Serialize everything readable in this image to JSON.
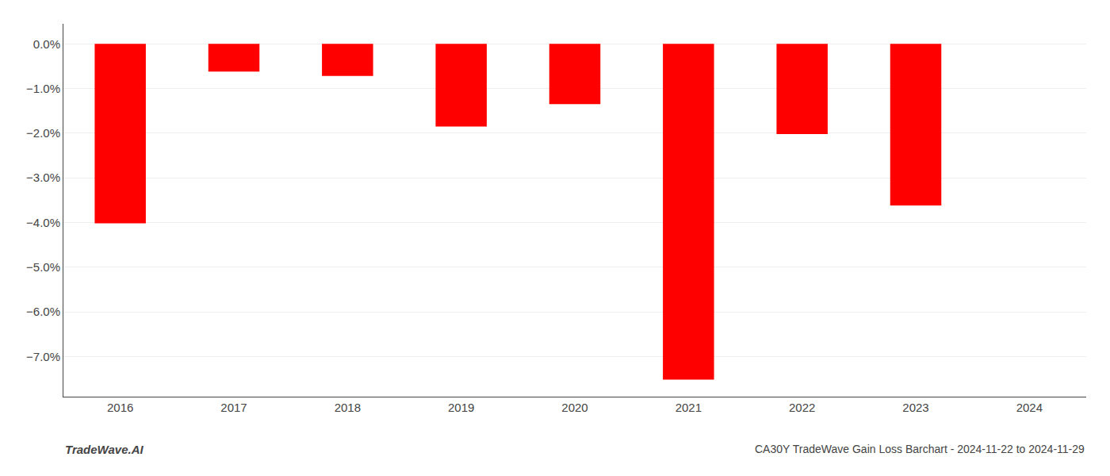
{
  "chart_data": {
    "type": "bar",
    "title": "CA30Y TradeWave Gain Loss Barchart - 2024-11-22 to 2024-11-29",
    "annotations": [
      "TradeWave.AI"
    ],
    "categories": [
      "2016",
      "2017",
      "2018",
      "2019",
      "2020",
      "2021",
      "2022",
      "2023",
      "2024"
    ],
    "values": [
      -4.02,
      -0.62,
      -0.72,
      -1.85,
      -1.35,
      -7.52,
      -2.02,
      -3.62,
      0.0
    ],
    "color": "#ff0000",
    "ylim": [
      -7.9,
      0.45
    ],
    "yticks": [
      {
        "value": 0.0,
        "label": "0.0%"
      },
      {
        "value": -1.0,
        "label": "−1.0%"
      },
      {
        "value": -2.0,
        "label": "−2.0%"
      },
      {
        "value": -3.0,
        "label": "−3.0%"
      },
      {
        "value": -4.0,
        "label": "−4.0%"
      },
      {
        "value": -5.0,
        "label": "−5.0%"
      },
      {
        "value": -6.0,
        "label": "−6.0%"
      },
      {
        "value": -7.0,
        "label": "−7.0%"
      }
    ],
    "grid": true
  }
}
